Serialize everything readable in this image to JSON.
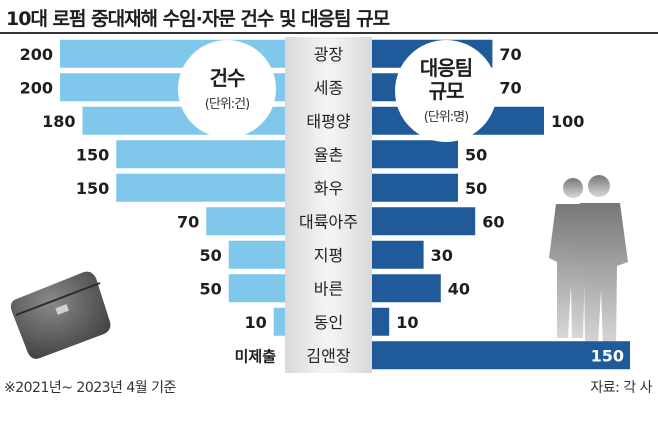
{
  "title": "10대 로펌 중대재해 수임·자문 건수 및 대응팀 규모",
  "circle_left": {
    "main": "건수",
    "unit": "(단위:건)"
  },
  "circle_right": {
    "main_line1": "대응팀",
    "main_line2": "규모",
    "unit": "(단위:명)"
  },
  "footnote_left": "※2021년~ 2023년 4월 기준",
  "footnote_right": "자료: 각 사",
  "colors": {
    "left_bar": "#7fc8ec",
    "right_bar": "#1f5a9a"
  },
  "icons": [
    "briefcase-icon",
    "businessmen-silhouette-icon"
  ],
  "chart_data": {
    "type": "bar",
    "categories": [
      "광장",
      "세종",
      "태평양",
      "율촌",
      "화우",
      "대륙아주",
      "지평",
      "바른",
      "동인",
      "김앤장"
    ],
    "series": [
      {
        "name": "건수",
        "values": [
          200,
          200,
          180,
          150,
          150,
          70,
          50,
          50,
          10,
          null
        ],
        "labels": [
          "200",
          "200",
          "180",
          "150",
          "150",
          "70",
          "50",
          "50",
          "10",
          "미제출"
        ]
      },
      {
        "name": "대응팀 규모",
        "values": [
          70,
          70,
          100,
          50,
          50,
          60,
          30,
          40,
          10,
          150
        ],
        "labels": [
          "70",
          "70",
          "100",
          "50",
          "50",
          "60",
          "30",
          "40",
          "10",
          "150"
        ]
      }
    ]
  }
}
